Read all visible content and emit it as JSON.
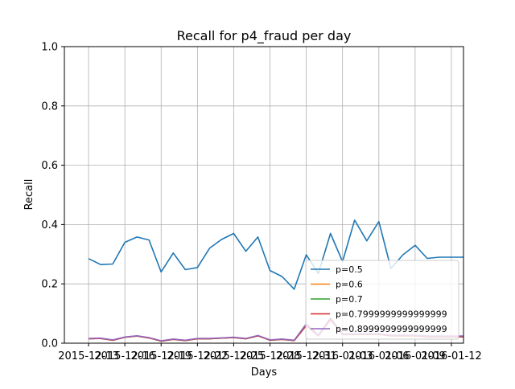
{
  "chart_data": {
    "type": "line",
    "title": "Recall for p4_fraud per day",
    "xlabel": "Days",
    "ylabel": "Recall",
    "ylim": [
      0,
      1
    ],
    "xlim": [
      "2015-12-11",
      "2016-01-13"
    ],
    "grid": true,
    "legend_position": "lower-right",
    "x": [
      "2015-12-13",
      "2015-12-14",
      "2015-12-15",
      "2015-12-16",
      "2015-12-17",
      "2015-12-18",
      "2015-12-19",
      "2015-12-20",
      "2015-12-21",
      "2015-12-22",
      "2015-12-23",
      "2015-12-24",
      "2015-12-25",
      "2015-12-26",
      "2015-12-27",
      "2015-12-28",
      "2015-12-29",
      "2015-12-30",
      "2015-12-31",
      "2016-01-01",
      "2016-01-02",
      "2016-01-03",
      "2016-01-04",
      "2016-01-05",
      "2016-01-06",
      "2016-01-07",
      "2016-01-08",
      "2016-01-09",
      "2016-01-10",
      "2016-01-11",
      "2016-01-12",
      "2016-01-13"
    ],
    "x_tick_labels": [
      "2015-12-13",
      "2015-12-16",
      "2015-12-19",
      "2015-12-22",
      "2015-12-25",
      "2015-12-28",
      "2015-12-31",
      "2016-01-03",
      "2016-01-06",
      "2016-01-09",
      "2016-01-12"
    ],
    "y_tick_labels": [
      "0.0",
      "0.2",
      "0.4",
      "0.6",
      "0.8",
      "1.0"
    ],
    "series": [
      {
        "name": "p=0.5",
        "color": "#1f77b4",
        "values": [
          0.285,
          0.265,
          0.267,
          0.34,
          0.358,
          0.348,
          0.24,
          0.304,
          0.248,
          0.255,
          0.32,
          0.35,
          0.37,
          0.31,
          0.358,
          0.245,
          0.225,
          0.182,
          0.298,
          0.235,
          0.37,
          0.275,
          0.415,
          0.345,
          0.41,
          0.252,
          0.298,
          0.33,
          0.286,
          0.29,
          0.29,
          0.29
        ]
      },
      {
        "name": "p=0.6",
        "color": "#ff7f0e",
        "values": [
          0.015,
          0.016,
          0.01,
          0.02,
          0.024,
          0.018,
          0.007,
          0.013,
          0.009,
          0.015,
          0.015,
          0.017,
          0.019,
          0.015,
          0.025,
          0.01,
          0.013,
          0.009,
          0.06,
          0.025,
          0.08,
          0.03,
          0.03,
          0.03,
          0.03,
          0.025,
          0.025,
          0.025,
          0.022,
          0.022,
          0.022,
          0.022
        ]
      },
      {
        "name": "p=0.7",
        "color": "#2ca02c",
        "values": [
          0.015,
          0.016,
          0.01,
          0.02,
          0.024,
          0.018,
          0.007,
          0.013,
          0.009,
          0.015,
          0.015,
          0.017,
          0.019,
          0.015,
          0.025,
          0.01,
          0.013,
          0.009,
          0.06,
          0.025,
          0.08,
          0.03,
          0.03,
          0.03,
          0.03,
          0.025,
          0.025,
          0.025,
          0.022,
          0.022,
          0.022,
          0.022
        ]
      },
      {
        "name": "p=0.7999999999999999",
        "color": "#d62728",
        "values": [
          0.015,
          0.016,
          0.01,
          0.02,
          0.024,
          0.018,
          0.007,
          0.013,
          0.009,
          0.015,
          0.015,
          0.017,
          0.019,
          0.015,
          0.025,
          0.01,
          0.013,
          0.009,
          0.06,
          0.025,
          0.08,
          0.03,
          0.03,
          0.03,
          0.03,
          0.025,
          0.025,
          0.025,
          0.022,
          0.022,
          0.022,
          0.022
        ]
      },
      {
        "name": "p=0.8999999999999999",
        "color": "#9467bd",
        "values": [
          0.016,
          0.017,
          0.011,
          0.021,
          0.025,
          0.019,
          0.008,
          0.014,
          0.01,
          0.016,
          0.016,
          0.018,
          0.02,
          0.016,
          0.026,
          0.011,
          0.014,
          0.01,
          0.065,
          0.027,
          0.085,
          0.032,
          0.032,
          0.032,
          0.032,
          0.027,
          0.027,
          0.027,
          0.024,
          0.024,
          0.024,
          0.024
        ]
      }
    ]
  }
}
